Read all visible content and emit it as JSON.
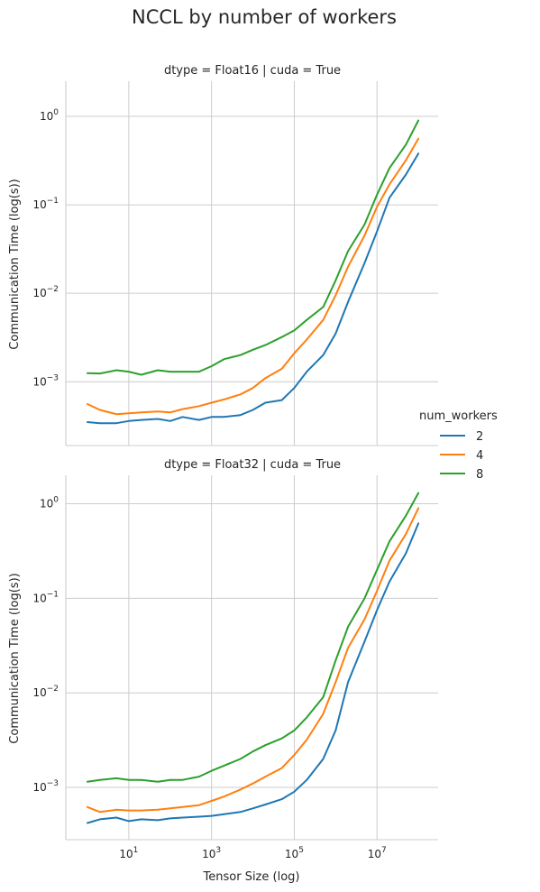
{
  "chart_data": {
    "type": "line",
    "title": "NCCL by number of workers",
    "xlabel": "Tensor Size (log)",
    "ylabel": "Communication Time (log(s))",
    "x_scale": "log",
    "y_scale": "log",
    "xlim": [
      0.3,
      300000000
    ],
    "x_ticks": [
      {
        "value": 10,
        "base": "10",
        "exp": "1"
      },
      {
        "value": 1000,
        "base": "10",
        "exp": "3"
      },
      {
        "value": 100000,
        "base": "10",
        "exp": "5"
      },
      {
        "value": 10000000,
        "base": "10",
        "exp": "7"
      }
    ],
    "y_ticks": [
      {
        "value": 0.001,
        "base": "10",
        "exp": "−3"
      },
      {
        "value": 0.01,
        "base": "10",
        "exp": "−2"
      },
      {
        "value": 0.1,
        "base": "10",
        "exp": "−1"
      },
      {
        "value": 1,
        "base": "10",
        "exp": "0"
      }
    ],
    "grid": true,
    "legend": {
      "title": "num_workers",
      "placement": "right",
      "entries": [
        {
          "label": "2",
          "color": "#1f77b4"
        },
        {
          "label": "4",
          "color": "#ff7f0e"
        },
        {
          "label": "8",
          "color": "#2ca02c"
        }
      ]
    },
    "panels": [
      {
        "title": "dtype = Float16 | cuda = True",
        "ylim": [
          0.00019,
          2.5
        ],
        "series": [
          {
            "name": "2",
            "color": "#1f77b4",
            "x": [
              1,
              2,
              5,
              10,
              20,
              50,
              100,
              200,
              500,
              1000,
              2000,
              5000,
              10000,
              20000,
              50000,
              100000,
              200000,
              500000,
              1000000,
              2000000,
              5000000,
              10000000,
              20000000,
              50000000,
              100000000
            ],
            "y": [
              0.00035,
              0.00034,
              0.00034,
              0.00036,
              0.00037,
              0.00038,
              0.00036,
              0.0004,
              0.00037,
              0.0004,
              0.0004,
              0.00042,
              0.00048,
              0.00058,
              0.00062,
              0.00085,
              0.0013,
              0.002,
              0.0035,
              0.008,
              0.022,
              0.05,
              0.12,
              0.22,
              0.38
            ]
          },
          {
            "name": "4",
            "color": "#ff7f0e",
            "x": [
              1,
              2,
              5,
              10,
              20,
              50,
              100,
              200,
              500,
              1000,
              2000,
              5000,
              10000,
              20000,
              50000,
              100000,
              200000,
              500000,
              1000000,
              2000000,
              5000000,
              10000000,
              20000000,
              50000000,
              100000000
            ],
            "y": [
              0.00056,
              0.00048,
              0.00043,
              0.00044,
              0.00045,
              0.00046,
              0.00045,
              0.00049,
              0.00053,
              0.00058,
              0.00063,
              0.00072,
              0.00085,
              0.0011,
              0.0014,
              0.0021,
              0.003,
              0.005,
              0.0095,
              0.02,
              0.045,
              0.095,
              0.17,
              0.32,
              0.56
            ]
          },
          {
            "name": "8",
            "color": "#2ca02c",
            "x": [
              1,
              2,
              5,
              10,
              20,
              50,
              100,
              200,
              500,
              1000,
              2000,
              5000,
              10000,
              20000,
              50000,
              100000,
              200000,
              500000,
              1000000,
              2000000,
              5000000,
              10000000,
              20000000,
              50000000,
              100000000
            ],
            "y": [
              0.00125,
              0.00124,
              0.00135,
              0.0013,
              0.0012,
              0.00135,
              0.0013,
              0.0013,
              0.0013,
              0.0015,
              0.0018,
              0.002,
              0.0023,
              0.0026,
              0.0032,
              0.0038,
              0.005,
              0.007,
              0.014,
              0.03,
              0.06,
              0.13,
              0.26,
              0.48,
              0.9
            ]
          }
        ]
      },
      {
        "title": "dtype = Float32 | cuda = True",
        "ylim": [
          0.00028,
          2.0
        ],
        "series": [
          {
            "name": "2",
            "color": "#1f77b4",
            "x": [
              1,
              2,
              5,
              10,
              20,
              50,
              100,
              200,
              500,
              1000,
              2000,
              5000,
              10000,
              20000,
              50000,
              100000,
              200000,
              500000,
              1000000,
              2000000,
              5000000,
              10000000,
              20000000,
              50000000,
              100000000
            ],
            "y": [
              0.00042,
              0.00046,
              0.00048,
              0.00044,
              0.00046,
              0.00045,
              0.00047,
              0.00048,
              0.00049,
              0.0005,
              0.00052,
              0.00055,
              0.0006,
              0.00066,
              0.00075,
              0.0009,
              0.0012,
              0.002,
              0.004,
              0.013,
              0.035,
              0.075,
              0.15,
              0.3,
              0.62
            ]
          },
          {
            "name": "4",
            "color": "#ff7f0e",
            "x": [
              1,
              2,
              5,
              10,
              20,
              50,
              100,
              200,
              500,
              1000,
              2000,
              5000,
              10000,
              20000,
              50000,
              100000,
              200000,
              500000,
              1000000,
              2000000,
              5000000,
              10000000,
              20000000,
              50000000,
              100000000
            ],
            "y": [
              0.00062,
              0.00055,
              0.00058,
              0.00057,
              0.00057,
              0.00058,
              0.0006,
              0.00062,
              0.00065,
              0.00072,
              0.0008,
              0.00095,
              0.0011,
              0.0013,
              0.0016,
              0.0022,
              0.0032,
              0.006,
              0.013,
              0.03,
              0.06,
              0.12,
              0.25,
              0.48,
              0.9
            ]
          },
          {
            "name": "8",
            "color": "#2ca02c",
            "x": [
              1,
              2,
              5,
              10,
              20,
              50,
              100,
              200,
              500,
              1000,
              2000,
              5000,
              10000,
              20000,
              50000,
              100000,
              200000,
              500000,
              1000000,
              2000000,
              5000000,
              10000000,
              20000000,
              50000000,
              100000000
            ],
            "y": [
              0.00115,
              0.0012,
              0.00125,
              0.0012,
              0.0012,
              0.00115,
              0.0012,
              0.0012,
              0.0013,
              0.0015,
              0.0017,
              0.002,
              0.0024,
              0.0028,
              0.0033,
              0.004,
              0.0055,
              0.009,
              0.022,
              0.05,
              0.1,
              0.2,
              0.4,
              0.75,
              1.3
            ]
          }
        ]
      }
    ]
  }
}
